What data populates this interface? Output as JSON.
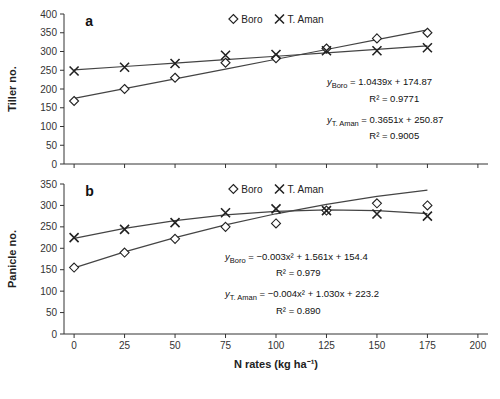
{
  "chart_data": [
    {
      "type": "scatter",
      "title": "a",
      "ylabel": "Tiller no.",
      "x": [
        0,
        25,
        50,
        75,
        100,
        125,
        150,
        175
      ],
      "series": [
        {
          "name": "Boro",
          "color": "#222222",
          "marker": "diamond",
          "values": [
            168,
            200,
            230,
            270,
            282,
            308,
            335,
            350
          ]
        },
        {
          "name": "T. Aman",
          "color": "#222222",
          "marker": "x",
          "values": [
            248,
            258,
            268,
            290,
            292,
            302,
            302,
            310
          ]
        },
        {
          "type": "line",
          "color": "#444444",
          "values": [
            174.87,
            200.9675,
            227.065,
            253.1625,
            279.26,
            305.3575,
            331.455,
            357.5525
          ]
        },
        {
          "type": "line",
          "color": "#444444",
          "values": [
            250.87,
            259.9975,
            269.125,
            278.2525,
            287.38,
            296.5075,
            305.635,
            314.7625
          ]
        }
      ],
      "annotations": [
        {
          "text": "y",
          "subscript": "Boro",
          "suffix": " = 1.0439x + 174.87"
        },
        {
          "text": "R² = 0.9771"
        },
        {
          "text": "y",
          "subscript": "T. Aman",
          "suffix": " = 0.3651x + 250.87"
        },
        {
          "text": "R² = 0.9005"
        }
      ],
      "xlim": [
        -5,
        205
      ],
      "xticks": [
        0,
        25,
        50,
        75,
        100,
        125,
        150,
        175,
        200
      ],
      "ylim": [
        0,
        400
      ],
      "yticks": [
        0,
        50,
        100,
        150,
        200,
        250,
        300,
        350,
        400
      ],
      "tick_labels": "y",
      "legend": "top",
      "grid": false
    },
    {
      "type": "scatter",
      "title": "b",
      "xlabel": "N rates (kg ha⁻¹)",
      "ylabel": "Panicle no.",
      "x": [
        0,
        25,
        50,
        75,
        100,
        125,
        150,
        175
      ],
      "series": [
        {
          "name": "Boro",
          "color": "#222222",
          "marker": "diamond",
          "values": [
            155,
            190,
            222,
            250,
            258,
            288,
            305,
            300
          ]
        },
        {
          "name": "T. Aman",
          "color": "#222222",
          "marker": "x",
          "values": [
            225,
            244,
            260,
            283,
            292,
            288,
            280,
            275
          ]
        },
        {
          "type": "line",
          "color": "#444444",
          "values": [
            154.4,
            191.55,
            224.95,
            254.6,
            280.5,
            302.65,
            321.05,
            335.7
          ]
        },
        {
          "type": "line",
          "color": "#444444",
          "values": [
            223.2,
            246.45,
            264.7,
            277.95,
            286.2,
            289.45,
            287.7,
            280.95
          ]
        }
      ],
      "annotations": [
        {
          "text": "y",
          "subscript": "Boro",
          "suffix": " = −0.003x² + 1.561x + 154.4"
        },
        {
          "text": "R² = 0.979"
        },
        {
          "text": "y",
          "subscript": "T. Aman",
          "suffix": " = −0.004x² + 1.030x + 223.2"
        },
        {
          "text": "R² = 0.890"
        }
      ],
      "xlim": [
        -5,
        205
      ],
      "xticks": [
        0,
        25,
        50,
        75,
        100,
        125,
        150,
        175,
        200
      ],
      "ylim": [
        0,
        350
      ],
      "yticks": [
        0,
        50,
        100,
        150,
        200,
        250,
        300,
        350
      ],
      "legend": "top",
      "grid": false
    }
  ]
}
